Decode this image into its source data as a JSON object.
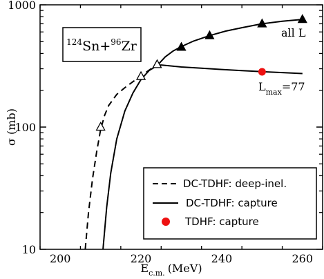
{
  "chart_data": {
    "type": "line",
    "xlabel": {
      "main": "E",
      "sub": "c.m.",
      "unit": "(MeV)"
    },
    "ylabel": "σ (mb)",
    "xlim": [
      195,
      265
    ],
    "ylim": [
      10,
      1000
    ],
    "yscale": "log",
    "grid": false,
    "x_ticks": [
      200,
      220,
      240,
      260
    ],
    "y_ticks": [
      10,
      100,
      1000
    ],
    "box_label": {
      "pre_a": "124",
      "a": "Sn+",
      "pre_b": "96",
      "b": "Zr"
    },
    "annotations": {
      "all_l": "all L",
      "lmax": {
        "main": "L",
        "sub": "max",
        "rest": "=77"
      }
    },
    "legend": {
      "placement": "lower-right",
      "entries": [
        {
          "label": "DC-TDHF: deep-inel.",
          "style": "dashed"
        },
        {
          "label": "DC-TDHF: capture",
          "style": "solid"
        },
        {
          "label": "TDHF: capture",
          "style": "red-dot"
        }
      ]
    },
    "series": [
      {
        "style": "dashed",
        "x": [
          206.2,
          207.0,
          208.0,
          209.0,
          210.0,
          211.0,
          212.0,
          214.0,
          216.0,
          218.0,
          220.0,
          222.0,
          224.0
        ],
        "y": [
          10,
          20,
          38,
          62,
          95,
          125,
          150,
          185,
          210,
          235,
          262,
          292,
          325
        ]
      },
      {
        "style": "solid",
        "x": [
          210.6,
          211.5,
          212.5,
          214.0,
          216.0,
          218.0,
          220.0,
          222.0,
          224.0,
          225.0,
          230.0,
          235.0,
          240.0,
          245.0,
          250.0,
          255.0,
          260.0
        ],
        "y": [
          10,
          22,
          42,
          80,
          135,
          190,
          245,
          290,
          318,
          322,
          310,
          303,
          296,
          290,
          284,
          279,
          274
        ]
      },
      {
        "style": "solid",
        "x": [
          224.0,
          226.0,
          228.0,
          230.0,
          233.0,
          237.0,
          241.0,
          245.0,
          250.0,
          255.0,
          260.0
        ],
        "y": [
          318,
          375,
          420,
          455,
          505,
          560,
          610,
          650,
          700,
          735,
          760
        ]
      },
      {
        "style": "open-triangle",
        "x": [
          210,
          220,
          224
        ],
        "y": [
          100,
          260,
          325
        ]
      },
      {
        "style": "filled-triangle",
        "x": [
          230,
          237,
          250,
          260
        ],
        "y": [
          450,
          560,
          700,
          760
        ]
      },
      {
        "style": "red-dot",
        "x": [
          250
        ],
        "y": [
          283
        ]
      }
    ]
  }
}
